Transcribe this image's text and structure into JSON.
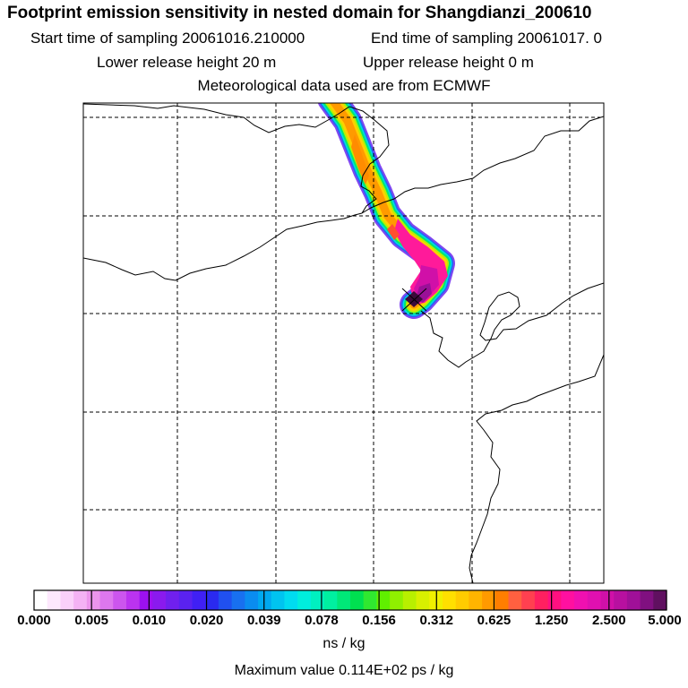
{
  "header": {
    "title": "Footprint emission sensitivity in nested domain for Shangdianzi_200610",
    "start_time": "Start time of sampling 20061016.210000",
    "end_time": "End time of sampling 20061017.     0",
    "lower_release": "Lower release height   20 m",
    "upper_release": "Upper release height    0 m",
    "met_data": "Meteorological data used are from ECMWF"
  },
  "colorbar": {
    "tick_labels": [
      "0.000",
      "0.005",
      "0.010",
      "0.020",
      "0.039",
      "0.078",
      "0.156",
      "0.312",
      "0.625",
      "1.250",
      "2.500",
      "5.000"
    ],
    "colors": [
      "#ffffff",
      "#fde8fd",
      "#fad0fa",
      "#f4b2f4",
      "#ec95ec",
      "#dd77ee",
      "#cc55ee",
      "#bb33f0",
      "#9c11f0",
      "#8a1aee",
      "#7020ee",
      "#5a22f0",
      "#4020f4",
      "#2a2af0",
      "#2050f0",
      "#1870f0",
      "#0a8cf0",
      "#00a8f0",
      "#00c4f0",
      "#00dcf0",
      "#00eedd",
      "#00f0c0",
      "#00f0a0",
      "#00e878",
      "#00e050",
      "#30e830",
      "#60f000",
      "#90f000",
      "#b8f000",
      "#d8f000",
      "#f0f000",
      "#ffe000",
      "#ffcc00",
      "#ffb400",
      "#ff9a00",
      "#ff7e00",
      "#ff6040",
      "#ff4050",
      "#ff2060",
      "#ff1080",
      "#ff10a0",
      "#f010b0",
      "#e010b0",
      "#d010a8",
      "#b810a0",
      "#a01098",
      "#801080",
      "#601060"
    ],
    "unit": "ns / kg"
  },
  "max_value": "Maximum value  0.114E+02 ps / kg",
  "map": {
    "gridline_style": "dashed",
    "receptor": "Shangdianzi",
    "plume_levels": [
      "5.000",
      "2.500",
      "1.250",
      "0.625",
      "0.312",
      "0.156",
      "0.078",
      "0.039",
      "0.020"
    ]
  }
}
